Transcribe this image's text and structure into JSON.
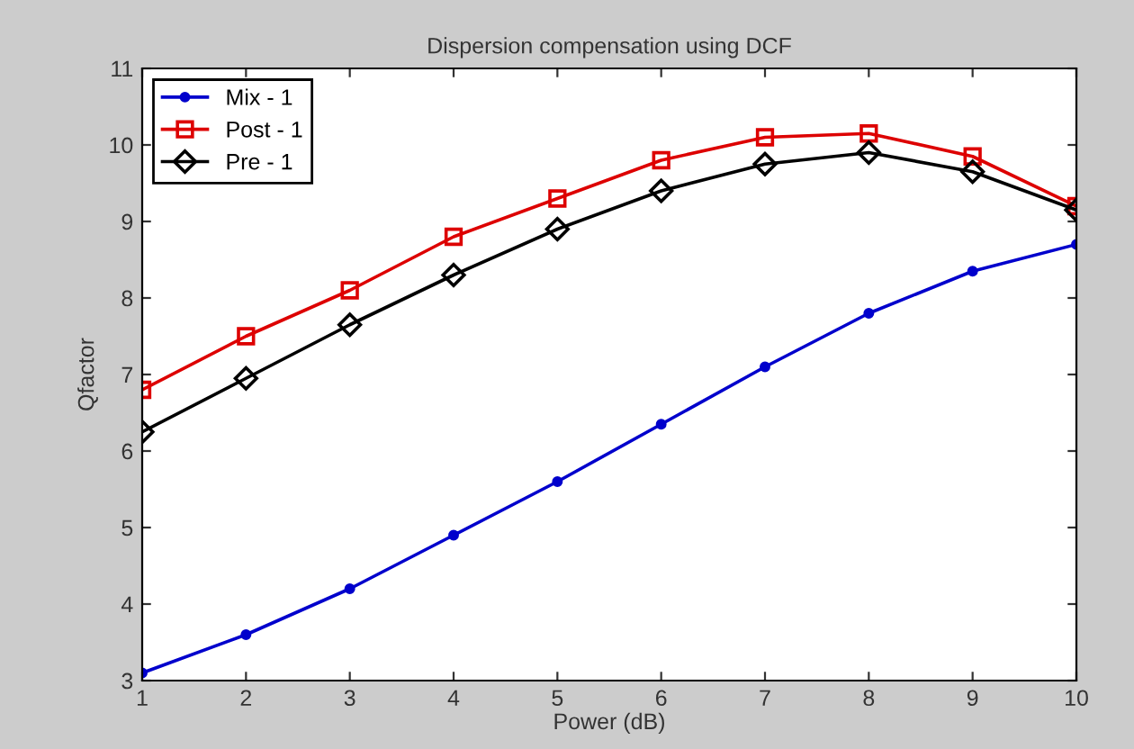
{
  "chart_data": {
    "type": "line",
    "title": "Dispersion compensation using DCF",
    "xlabel": "Power (dB)",
    "ylabel": "Qfactor",
    "x": [
      1,
      2,
      3,
      4,
      5,
      6,
      7,
      8,
      9,
      10
    ],
    "series": [
      {
        "name": "Mix - 1",
        "color": "#0000cc",
        "marker": "circle",
        "values": [
          3.1,
          3.6,
          4.2,
          4.9,
          5.6,
          6.35,
          7.1,
          7.8,
          8.35,
          8.7
        ]
      },
      {
        "name": "Post - 1",
        "color": "#dd0000",
        "marker": "square",
        "values": [
          6.8,
          7.5,
          8.1,
          8.8,
          9.3,
          9.8,
          10.1,
          10.15,
          9.85,
          9.2
        ]
      },
      {
        "name": "Pre - 1",
        "color": "#000000",
        "marker": "diamond",
        "values": [
          6.25,
          6.95,
          7.65,
          8.3,
          8.9,
          9.4,
          9.75,
          9.9,
          9.65,
          9.15
        ]
      }
    ],
    "xlim": [
      1,
      10
    ],
    "ylim": [
      3,
      11
    ],
    "xticks": [
      1,
      2,
      3,
      4,
      5,
      6,
      7,
      8,
      9,
      10
    ],
    "yticks": [
      3,
      4,
      5,
      6,
      7,
      8,
      9,
      10,
      11
    ],
    "grid": false,
    "legend": "top left"
  }
}
